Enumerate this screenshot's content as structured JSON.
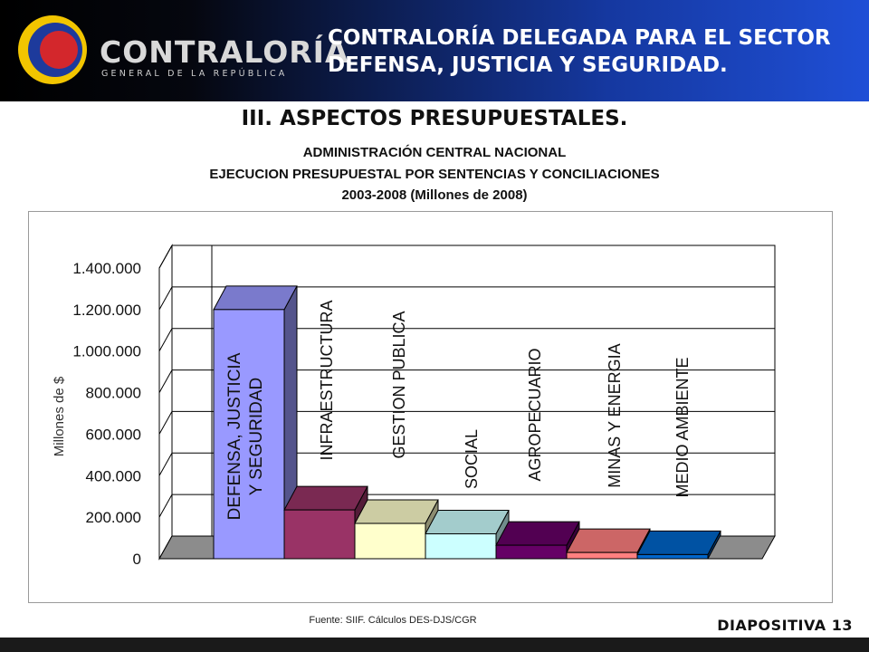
{
  "header": {
    "logo_name": "CONTRALORÍA",
    "logo_subtitle": "GENERAL DE LA REPÚBLICA",
    "title_line1": "CONTRALORÍA DELEGADA PARA EL SECTOR",
    "title_line2": "DEFENSA, JUSTICIA Y SEGURIDAD."
  },
  "section_title": "III. ASPECTOS PRESUPUESTALES.",
  "subtitles": [
    "ADMINISTRACIÓN CENTRAL NACIONAL",
    "EJECUCION PRESUPUESTAL POR SENTENCIAS Y CONCILIACIONES",
    "2003-2008 (Millones de 2008)"
  ],
  "source": "Fuente: SIIF.  Cálculos DES-DJS/CGR",
  "slide_label": "DIAPOSITIVA 13",
  "colors": {
    "logo_ring_outer": "#f2c500",
    "logo_ring_inner": "#1d3a9c",
    "logo_center": "#d3272c"
  },
  "chart_data": {
    "type": "bar",
    "style": "3d",
    "ylabel": "Millones de $",
    "ylim": [
      0,
      1400000
    ],
    "yticks": [
      "0",
      "200.000",
      "400.000",
      "600.000",
      "800.000",
      "1.000.000",
      "1.200.000",
      "1.400.000"
    ],
    "grid": true,
    "legend": "none",
    "categories": [
      {
        "name": "DEFENSA, JUSTICIA Y SEGURIDAD",
        "lines": [
          "DEFENSA, JUSTICIA",
          "Y SEGURIDAD"
        ],
        "value": 1200000,
        "color": "#9999ff"
      },
      {
        "name": "INFRAESTRUCTURA",
        "lines": [
          "INFRAESTRUCTURA"
        ],
        "value": 235000,
        "color": "#993366"
      },
      {
        "name": "GESTION PUBLICA",
        "lines": [
          "GESTION PUBLICA"
        ],
        "value": 170000,
        "color": "#ffffcc"
      },
      {
        "name": "SOCIAL",
        "lines": [
          "SOCIAL"
        ],
        "value": 120000,
        "color": "#ccffff"
      },
      {
        "name": "AGROPECUARIO",
        "lines": [
          "AGROPECUARIO"
        ],
        "value": 65000,
        "color": "#660066"
      },
      {
        "name": "MINAS Y ENERGIA",
        "lines": [
          "MINAS Y ENERGIA"
        ],
        "value": 30000,
        "color": "#ff8080"
      },
      {
        "name": "MEDIO AMBIENTE",
        "lines": [
          "MEDIO AMBIENTE"
        ],
        "value": 20000,
        "color": "#0066cc"
      }
    ]
  }
}
